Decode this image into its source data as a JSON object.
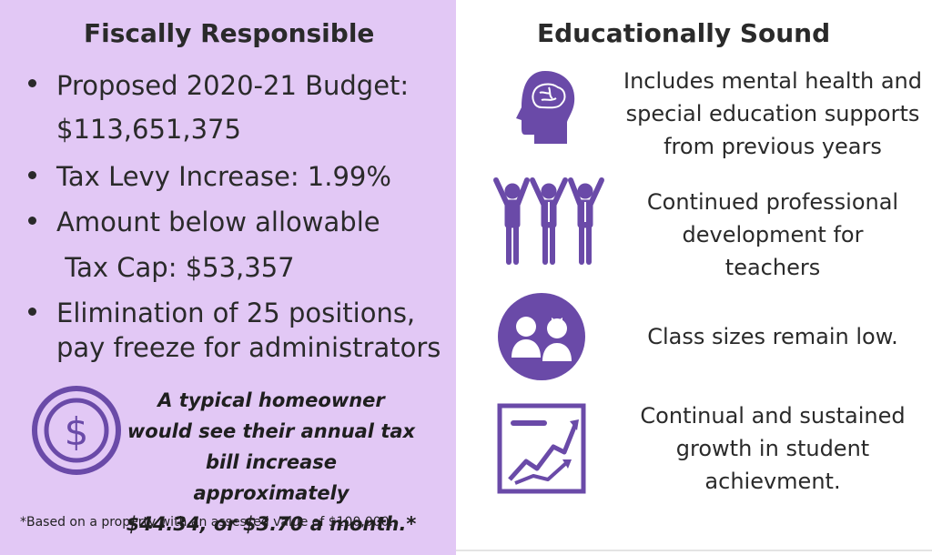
{
  "left": {
    "heading": "Fiscally Responsible",
    "bullets": [
      {
        "lines": [
          "Proposed 2020-21 Budget:",
          "$113,651,375"
        ]
      },
      {
        "lines": [
          "Tax Levy Increase: 1.99%"
        ]
      },
      {
        "lines": [
          "Amount below allowable",
          " Tax Cap: $53,357"
        ]
      },
      {
        "lines": [
          "Elimination of 25 positions,",
          "pay freeze for administrators"
        ]
      }
    ],
    "note_lines": [
      "A typical homeowner",
      "would see their annual tax",
      "bill increase approximately",
      "$44.34, or $3.70 a month.*"
    ],
    "footnote": "*Based on a property with an assessed value of $100,000.",
    "icon": "dollar-coin-icon"
  },
  "right": {
    "heading": "Educationally Sound",
    "features": [
      {
        "icon": "brain-head-icon",
        "lines": [
          "Includes mental health and",
          "special education supports",
          "from previous years"
        ]
      },
      {
        "icon": "cheering-people-icon",
        "lines": [
          "Continued professional",
          "development for",
          "teachers"
        ]
      },
      {
        "icon": "students-circle-icon",
        "lines": [
          "Class sizes remain low."
        ]
      },
      {
        "icon": "growth-chart-icon",
        "lines": [
          "Continual and sustained",
          "growth in student",
          "achievment."
        ]
      }
    ]
  },
  "colors": {
    "left_bg": "#e2c8f5",
    "icon_purple": "#6a4aa8",
    "text": "#2a2a2a"
  }
}
